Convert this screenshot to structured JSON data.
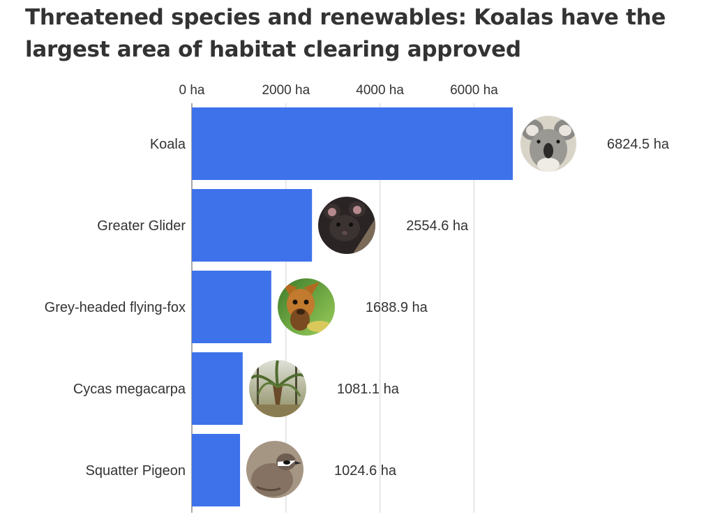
{
  "chart_data": {
    "type": "bar",
    "orientation": "horizontal",
    "title": "Threatened species and renewables: Koalas have the largest area of habitat clearing approved",
    "categories": [
      "Koala",
      "Greater Glider",
      "Grey-headed flying-fox",
      "Cycas megacarpa",
      "Squatter Pigeon"
    ],
    "values": [
      6824.5,
      2554.6,
      1688.9,
      1081.1,
      1024.6
    ],
    "value_labels": [
      "6824.5 ha",
      "2554.6 ha",
      "1688.9 ha",
      "1081.1 ha",
      "1024.6 ha"
    ],
    "unit": "ha",
    "x_ticks": [
      0,
      2000,
      4000,
      6000
    ],
    "x_tick_labels": [
      "0 ha",
      "2000 ha",
      "4000 ha",
      "6000 ha"
    ],
    "xlim": [
      0,
      6824.5
    ],
    "grid": "vertical",
    "axis_position": "top",
    "bar_color": "#3d72ea",
    "grid_color": "#d9d9d9",
    "images": [
      "koala-photo",
      "greater-glider-photo",
      "flying-fox-photo",
      "cycad-photo",
      "squatter-pigeon-photo"
    ]
  }
}
